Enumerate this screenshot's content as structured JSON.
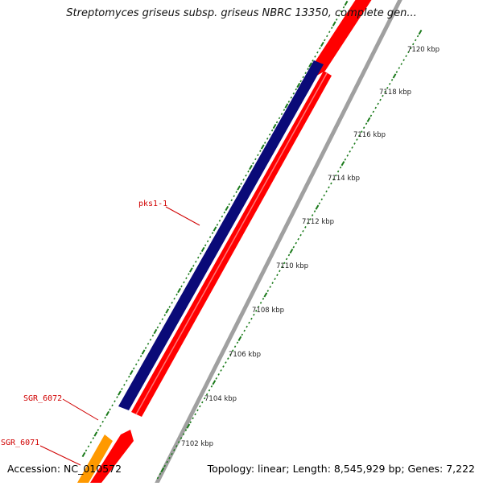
{
  "map": {
    "title": "Streptomyces griseus subsp. griseus NBRC 13350, complete gen...",
    "accession_text": "Accession: NC_010572",
    "summary_text": "Topology: linear; Length: 8,545,929 bp; Genes: 7,222",
    "tick_labels": [
      "7102 kbp",
      "7104 kbp",
      "7106 kbp",
      "7108 kbp",
      "7110 kbp",
      "7112 kbp",
      "7114 kbp",
      "7116 kbp",
      "7118 kbp",
      "7120 kbp"
    ],
    "gene_labels": [
      {
        "name": "pks1-1"
      },
      {
        "name": "SGR_6072"
      },
      {
        "name": "SGR_6071"
      }
    ]
  },
  "colors": {
    "feature_blue": "#0a0a78",
    "feature_red": "#ff0000",
    "feature_orange": "#ff9900",
    "tick_green": "#1a7a1a",
    "backbone_grey": "#a0a0a0",
    "label_red": "#d00000"
  }
}
